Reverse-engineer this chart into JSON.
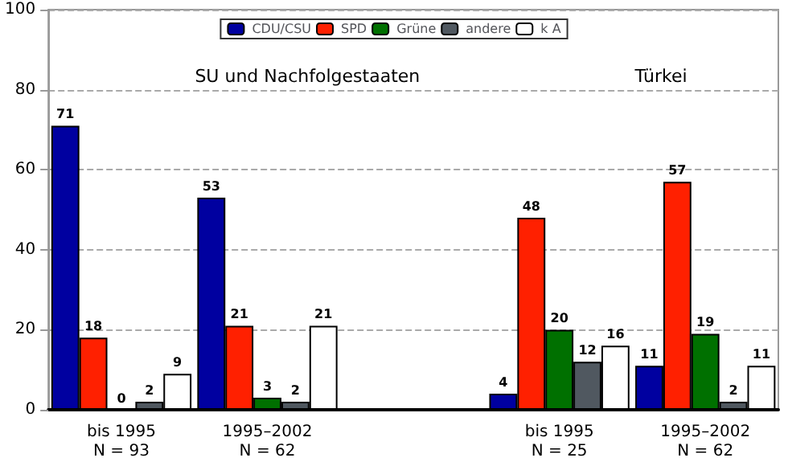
{
  "chart_data": {
    "type": "bar",
    "categories": [
      "bis 1995\nN = 93",
      "1995–2002\nN = 62",
      null,
      "bis 1995\nN = 25",
      "1995–2002\nN = 62"
    ],
    "series": [
      {
        "name": "CDU/CSU",
        "color": "#0000a0",
        "values": [
          71,
          53,
          null,
          4,
          11
        ]
      },
      {
        "name": "SPD",
        "color": "#ff2000",
        "values": [
          18,
          21,
          null,
          48,
          57
        ]
      },
      {
        "name": "Grüne",
        "color": "#007000",
        "values": [
          0,
          3,
          null,
          20,
          19
        ]
      },
      {
        "name": "andere",
        "color": "#505860",
        "values": [
          2,
          2,
          null,
          12,
          2
        ]
      },
      {
        "name": "k A",
        "color": "#ffffff",
        "values": [
          9,
          21,
          null,
          16,
          11
        ]
      }
    ],
    "annotations": [
      "SU und Nachfolgestaaten",
      "Türkei"
    ],
    "ylim": [
      0,
      100
    ],
    "yticks": [
      0,
      20,
      40,
      60,
      80,
      100
    ],
    "grid": "y",
    "legend": "top",
    "data_labels": true
  }
}
